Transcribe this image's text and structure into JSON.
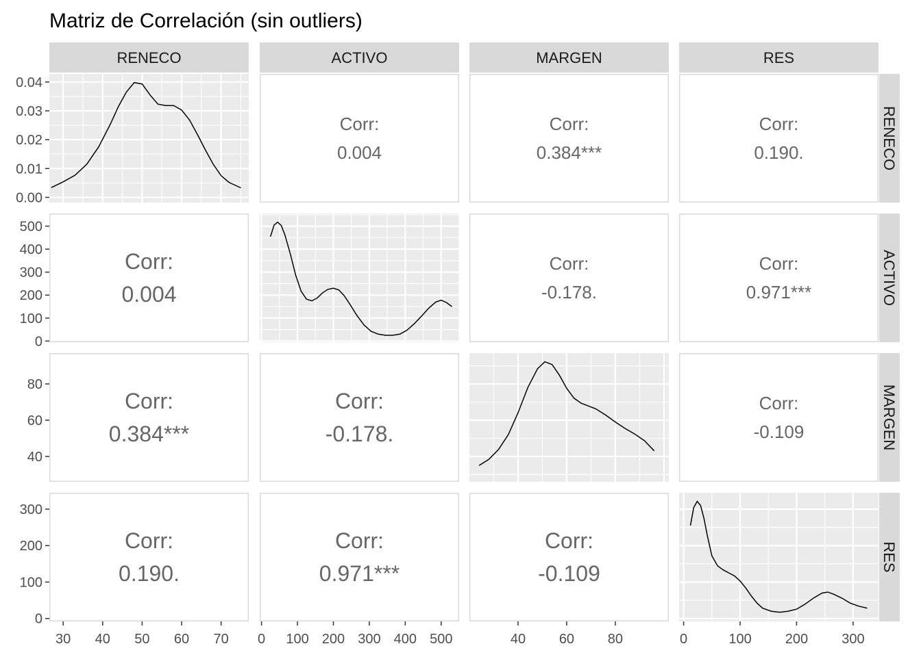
{
  "chart_data": {
    "type": "scatter-matrix",
    "title": "Matriz de Correlación (sin outliers)",
    "variables": [
      "RENECO",
      "ACTIVO",
      "MARGEN",
      "RES"
    ],
    "corr_label": "Corr:",
    "correlations": [
      {
        "row": "RENECO",
        "col": "ACTIVO",
        "value": "0.004"
      },
      {
        "row": "RENECO",
        "col": "MARGEN",
        "value": "0.384***"
      },
      {
        "row": "RENECO",
        "col": "RES",
        "value": "0.190."
      },
      {
        "row": "ACTIVO",
        "col": "MARGEN",
        "value": "-0.178."
      },
      {
        "row": "ACTIVO",
        "col": "RES",
        "value": "0.971***"
      },
      {
        "row": "MARGEN",
        "col": "RES",
        "value": "-0.109"
      }
    ],
    "x_axes": {
      "RENECO": {
        "range": [
          26.5,
          77
        ],
        "ticks": [
          30,
          40,
          50,
          60,
          70
        ]
      },
      "ACTIVO": {
        "range": [
          -5,
          550
        ],
        "ticks": [
          0,
          100,
          200,
          300,
          400,
          500
        ]
      },
      "MARGEN": {
        "range": [
          20,
          102
        ],
        "ticks": [
          40,
          60,
          80
        ]
      },
      "RES": {
        "range": [
          -8,
          345
        ],
        "ticks": [
          0,
          100,
          200,
          300
        ]
      }
    },
    "y_axes": {
      "RENECO": {
        "range": [
          -0.0018,
          0.0428
        ],
        "ticks": [
          0.0,
          0.01,
          0.02,
          0.03,
          0.04
        ],
        "labels": [
          "0.00",
          "0.01",
          "0.02",
          "0.03",
          "0.04"
        ]
      },
      "ACTIVO": {
        "range": [
          -5,
          555
        ],
        "ticks": [
          0,
          100,
          200,
          300,
          400,
          500
        ],
        "labels": [
          "0",
          "100",
          "200",
          "300",
          "400",
          "500"
        ]
      },
      "MARGEN": {
        "range": [
          26,
          97
        ],
        "ticks": [
          40,
          60,
          80
        ],
        "labels": [
          "40",
          "60",
          "80"
        ]
      },
      "RES": {
        "range": [
          -8,
          345
        ],
        "ticks": [
          0,
          100,
          200,
          300
        ],
        "labels": [
          "0",
          "100",
          "200",
          "300"
        ]
      }
    },
    "densities": {
      "RENECO": {
        "x": [
          27,
          30,
          33,
          36,
          39,
          42,
          44,
          46,
          48,
          50,
          52,
          54,
          56,
          58,
          60,
          62,
          64,
          66,
          68,
          70,
          72,
          75
        ],
        "y": [
          0.0034,
          0.0054,
          0.0077,
          0.0115,
          0.0175,
          0.0255,
          0.0315,
          0.0365,
          0.0398,
          0.0393,
          0.0355,
          0.0323,
          0.0318,
          0.0318,
          0.0303,
          0.0268,
          0.0218,
          0.0165,
          0.0115,
          0.0075,
          0.0052,
          0.0033
        ]
      },
      "ACTIVO": {
        "x": [
          25,
          35,
          45,
          55,
          65,
          80,
          95,
          110,
          125,
          140,
          155,
          170,
          185,
          200,
          215,
          230,
          245,
          265,
          285,
          305,
          325,
          345,
          365,
          385,
          405,
          425,
          445,
          465,
          485,
          500,
          515,
          530
        ],
        "y": [
          0.00175,
          0.00195,
          0.002,
          0.00194,
          0.00178,
          0.00145,
          0.00108,
          0.0008,
          0.00066,
          0.00063,
          0.00068,
          0.00077,
          0.00083,
          0.00085,
          0.00082,
          0.00072,
          0.00058,
          0.00038,
          0.00021,
          0.0001,
          5e-05,
          3e-05,
          3e-05,
          5e-05,
          0.00012,
          0.00023,
          0.00036,
          0.0005,
          0.00061,
          0.00064,
          0.0006,
          0.00053
        ]
      },
      "MARGEN": {
        "x": [
          24,
          28,
          32,
          36,
          40,
          44,
          48,
          51,
          54,
          57,
          60,
          63,
          66,
          69,
          72,
          76,
          80,
          84,
          88,
          92,
          96
        ],
        "y": [
          0.004,
          0.0062,
          0.0097,
          0.015,
          0.0228,
          0.0318,
          0.0385,
          0.041,
          0.04,
          0.0362,
          0.0315,
          0.028,
          0.0262,
          0.0252,
          0.0242,
          0.022,
          0.0195,
          0.0172,
          0.0152,
          0.0128,
          0.0092
        ]
      },
      "RES": {
        "x": [
          12,
          18,
          24,
          30,
          36,
          42,
          50,
          60,
          70,
          80,
          90,
          100,
          110,
          120,
          130,
          140,
          155,
          170,
          185,
          200,
          215,
          230,
          245,
          255,
          265,
          280,
          295,
          310,
          325
        ],
        "y": [
          0.009,
          0.0108,
          0.0114,
          0.011,
          0.0097,
          0.008,
          0.006,
          0.005,
          0.0046,
          0.0043,
          0.004,
          0.0035,
          0.0028,
          0.002,
          0.0013,
          0.0008,
          0.0005,
          0.0004,
          0.0005,
          0.0007,
          0.0012,
          0.0018,
          0.0023,
          0.0024,
          0.0022,
          0.0018,
          0.0013,
          0.001,
          0.0008
        ]
      }
    }
  }
}
